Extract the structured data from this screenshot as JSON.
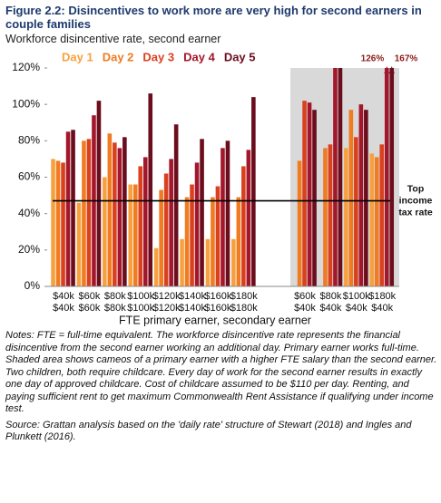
{
  "chart_data": {
    "type": "bar",
    "title": "Figure 2.2: Disincentives to work more are very high for second earners in couple families",
    "subtitle": "Workforce disincentive rate, second earner",
    "x_label": "FTE primary earner, secondary earner",
    "categories": [
      [
        "$40k",
        "$40k"
      ],
      [
        "$60k",
        "$60k"
      ],
      [
        "$80k",
        "$80k"
      ],
      [
        "$100k",
        "$100k"
      ],
      [
        "$120k",
        "$120k"
      ],
      [
        "$140k",
        "$140k"
      ],
      [
        "$160k",
        "$160k"
      ],
      [
        "$180k",
        "$180k"
      ],
      [
        "$60k",
        "$40k"
      ],
      [
        "$80k",
        "$40k"
      ],
      [
        "$100k",
        "$40k"
      ],
      [
        "$180k",
        "$40k"
      ]
    ],
    "shaded_categories": [
      8,
      9,
      10,
      11
    ],
    "series": [
      {
        "name": "Day 1",
        "color": "#f7a13e",
        "values": [
          70,
          46,
          60,
          56,
          21,
          26,
          26,
          26,
          null,
          null,
          76,
          73
        ]
      },
      {
        "name": "Day 2",
        "color": "#f07b20",
        "values": [
          69,
          80,
          84,
          56,
          53,
          49,
          49,
          49,
          69,
          76,
          97,
          71
        ]
      },
      {
        "name": "Day 3",
        "color": "#d9411e",
        "values": [
          68,
          81,
          79,
          66,
          62,
          56,
          55,
          66,
          102,
          78,
          82,
          78
        ]
      },
      {
        "name": "Day 4",
        "color": "#a3162b",
        "values": [
          85,
          94,
          76,
          71,
          70,
          68,
          76,
          75,
          101,
          120,
          100,
          126
        ],
        "value_labels": [
          null,
          null,
          null,
          null,
          null,
          null,
          null,
          null,
          null,
          null,
          null,
          "126%"
        ]
      },
      {
        "name": "Day 5",
        "color": "#6b0d1c",
        "values": [
          86,
          102,
          82,
          106,
          89,
          81,
          80,
          104,
          97,
          120,
          97,
          167
        ],
        "value_labels": [
          null,
          null,
          null,
          null,
          null,
          null,
          null,
          null,
          null,
          null,
          null,
          "167%"
        ]
      }
    ],
    "ylim": [
      0,
      120
    ],
    "yticks": [
      {
        "value": 0,
        "label": "0%"
      },
      {
        "value": 20,
        "label": "20%"
      },
      {
        "value": 40,
        "label": "40%"
      },
      {
        "value": 60,
        "label": "60%"
      },
      {
        "value": 80,
        "label": "80%"
      },
      {
        "value": 100,
        "label": "100%"
      },
      {
        "value": 120,
        "label": "120%"
      }
    ],
    "grid": false,
    "reference_line": {
      "value": 47,
      "label": [
        "Top",
        "income",
        "tax rate"
      ]
    },
    "notes": [
      "Notes: FTE = full-time equivalent. The workforce disincentive rate represents the financial disincentive from the second earner working an additional day. Primary earner works full-time. Shaded area shows cameos of a primary earner with a higher FTE salary than the second earner. Two children, both require childcare. Every day of work for the second earner results in exactly one day of approved childcare. Cost of childcare assumed to be $110 per day. Renting, and paying sufficient rent to get maximum Commonwealth Rent Assistance if qualifying under income test.",
      "Source: Grattan analysis based on the 'daily rate' structure of Stewart (2018) and Ingles and Plunkett (2016)."
    ]
  }
}
